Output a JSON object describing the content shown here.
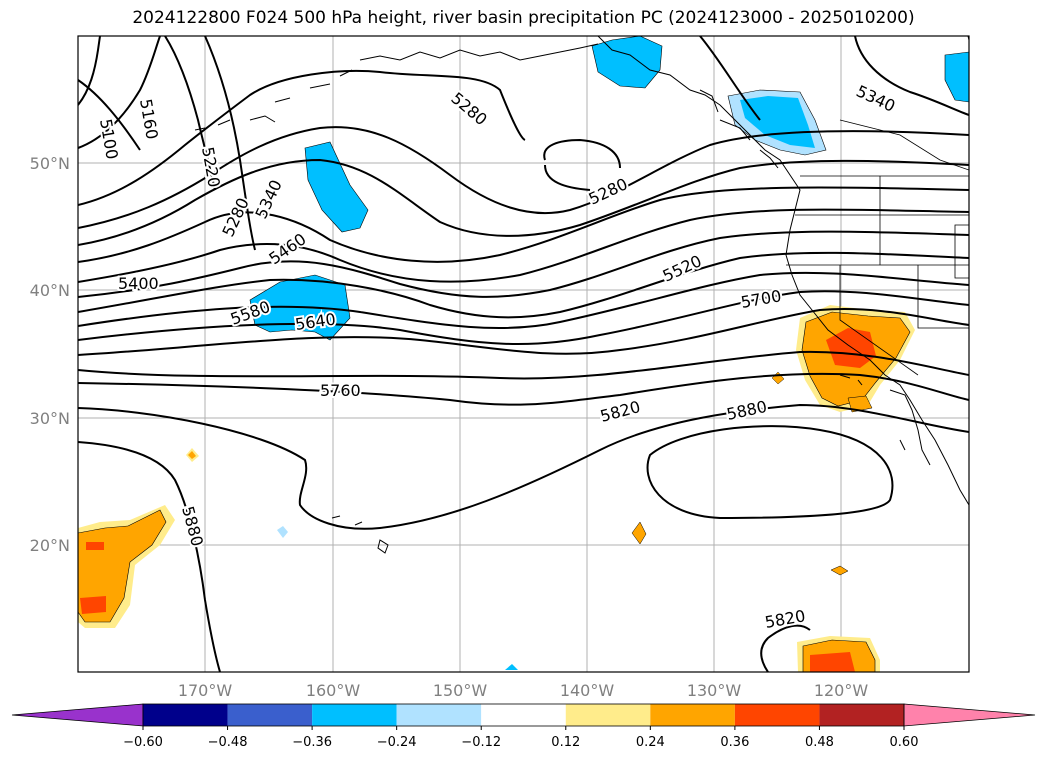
{
  "title": "2024122800 F024 500 hPa height, river basin precipitation PC (2024123000 - 2025010200)",
  "lat_labels": [
    "50°N",
    "40°N",
    "30°N",
    "20°N"
  ],
  "lon_labels": [
    "170°W",
    "160°W",
    "150°W",
    "140°W",
    "130°W",
    "120°W"
  ],
  "contour_labels": [
    "5100",
    "5160",
    "5220",
    "5280",
    "5340",
    "5280",
    "5340",
    "5280",
    "5400",
    "5460",
    "5520",
    "5580",
    "5640",
    "5700",
    "5760",
    "5820",
    "5880",
    "5880",
    "5820"
  ],
  "colorbar": {
    "ticks": [
      "−0.60",
      "−0.48",
      "−0.36",
      "−0.24",
      "−0.12",
      "0.12",
      "0.24",
      "0.36",
      "0.48",
      "0.60"
    ],
    "colors": [
      "#9932cc",
      "#00008b",
      "#3a5fcd",
      "#00bfff",
      "#b0e2ff",
      "#ffffff",
      "#ffec8b",
      "#ffa500",
      "#ff4500",
      "#b22222",
      "#ff82ab"
    ]
  }
}
